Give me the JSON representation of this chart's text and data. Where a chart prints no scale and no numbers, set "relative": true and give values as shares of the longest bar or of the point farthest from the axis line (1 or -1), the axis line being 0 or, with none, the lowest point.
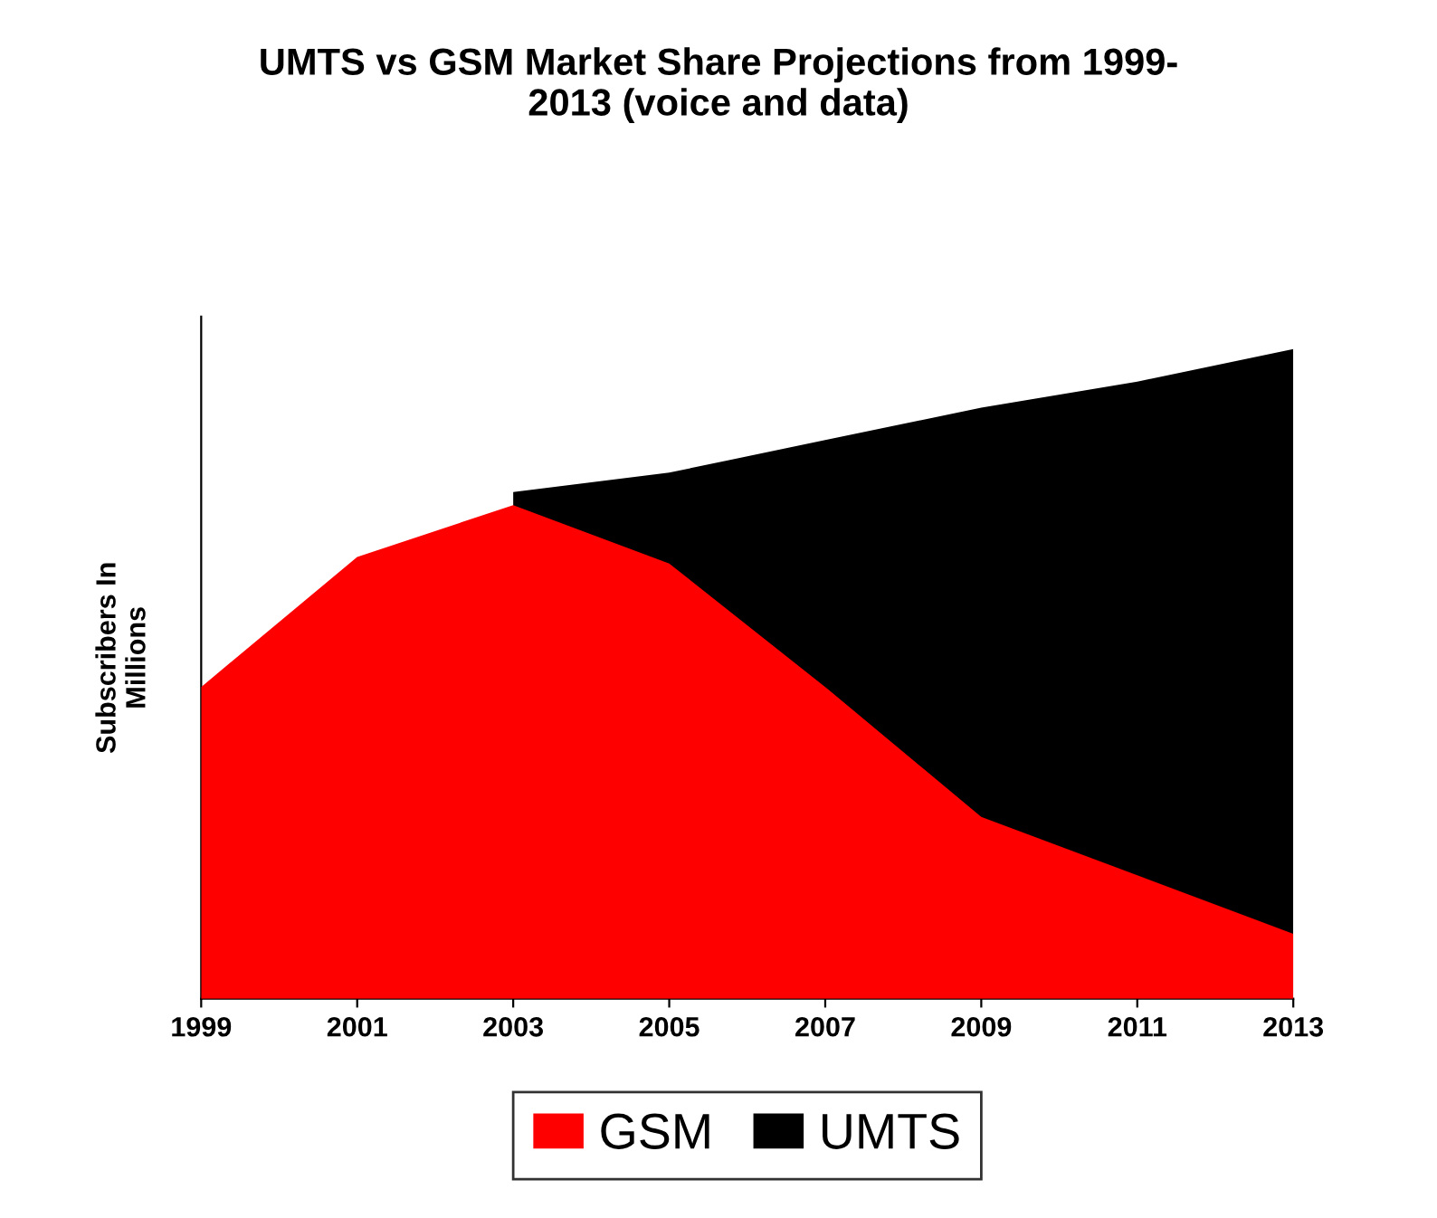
{
  "chart_data": {
    "type": "area",
    "title": "UMTS vs GSM Market Share Projections from 1999-\n2013 (voice and data)",
    "ylabel": "Subscribers In\nMillions",
    "categories": [
      "1999",
      "2001",
      "2003",
      "2005",
      "2007",
      "2009",
      "2011",
      "2013"
    ],
    "relative": true,
    "legend": "bottom",
    "grid": false,
    "series": [
      {
        "name": "GSM",
        "color": "#ff0000",
        "values": [
          0.48,
          0.68,
          0.76,
          0.67,
          0.48,
          0.28,
          0.19,
          0.1
        ]
      },
      {
        "name": "UMTS",
        "color": "#000000",
        "values": [
          null,
          null,
          0.78,
          0.81,
          0.86,
          0.91,
          0.95,
          1
        ]
      }
    ]
  }
}
